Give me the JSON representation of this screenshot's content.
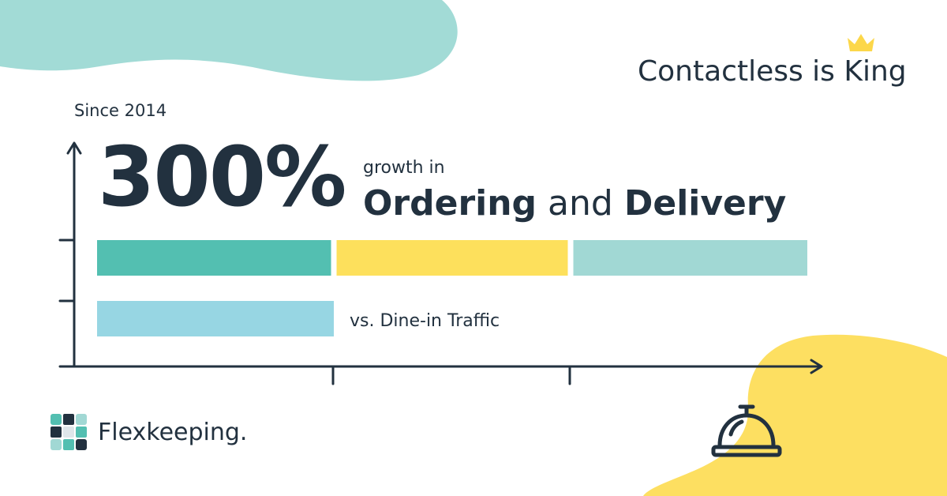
{
  "headline": "Contactless is King",
  "subhead": "Since 2014",
  "big_number": "300%",
  "growth_prefix": "growth in",
  "growth_term_1": "Ordering",
  "growth_joiner": "and",
  "growth_term_2": "Delivery",
  "brand": "Flexkeeping.",
  "icons": [
    "crown-icon",
    "service-bell-icon",
    "flexkeeping-logo-icon",
    "x-axis-arrow-icon",
    "y-axis-arrow-icon"
  ],
  "colors": {
    "text": "#22313f",
    "teal": "#53bfb1",
    "yellow": "#fde05c",
    "mint": "#a1d8d4",
    "light_blue": "#97d6e3",
    "blob_teal": "#a2dbd6",
    "blob_yellow": "#fddf61"
  },
  "chart_data": {
    "type": "bar",
    "orientation": "horizontal",
    "categories": [
      "Ordering and Delivery",
      "Dine-in Traffic"
    ],
    "values": [
      300,
      100
    ],
    "segment_unit": 100,
    "xlim": [
      0,
      310
    ],
    "x_ticks": [
      100,
      200
    ],
    "grid": false,
    "bar_labels": [
      "",
      "vs. Dine-in Traffic"
    ],
    "segment_colors": [
      [
        "#53bfb1",
        "#fde05c",
        "#a1d8d4"
      ],
      [
        "#97d6e3"
      ]
    ]
  }
}
